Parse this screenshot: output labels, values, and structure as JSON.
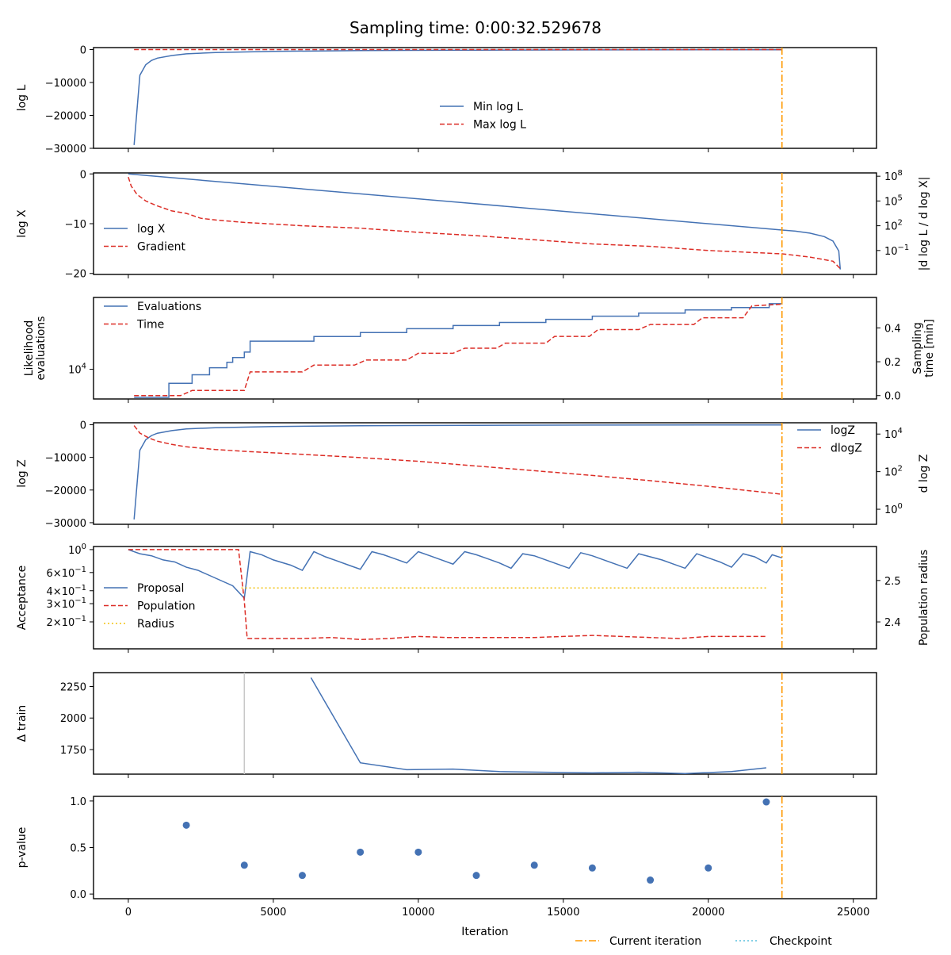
{
  "title": "Sampling time: 0:00:32.529678",
  "xlabel": "Iteration",
  "x_ticks": [
    0,
    5000,
    10000,
    15000,
    20000,
    25000
  ],
  "x_tick_labels": [
    "0",
    "5000",
    "10000",
    "15000",
    "20000",
    "25000"
  ],
  "xlim": [
    -1200,
    25800
  ],
  "current_iteration": 22540,
  "figure_legend": [
    {
      "label": "Current iteration",
      "style": "dashdot",
      "color": "#ff9900"
    },
    {
      "label": "Checkpoint",
      "style": "dotted",
      "color": "#5bc0de"
    }
  ],
  "colors": {
    "blue": "#4472b4",
    "red": "#dc2d26",
    "yellow": "#f2c20f",
    "orange": "#ff9900",
    "grey": "#c8c8c8",
    "cyan": "#5bc0de"
  },
  "chart_data": [
    {
      "id": "logL",
      "type": "line",
      "ylabel": "log L",
      "ylim": [
        -30000,
        600
      ],
      "yticks": [
        0,
        -10000,
        -20000,
        -30000
      ],
      "ytick_labels": [
        "0",
        "−10000",
        "−20000",
        "−30000"
      ],
      "legend": {
        "position": "lower center"
      },
      "series": [
        {
          "name": "Min log L",
          "style": "solid",
          "color": "#4472b4",
          "x": [
            200,
            400,
            600,
            800,
            1000,
            1500,
            2000,
            3000,
            5000,
            8000,
            12000,
            16000,
            20000,
            22540
          ],
          "y": [
            -29000,
            -7800,
            -4600,
            -3300,
            -2600,
            -1800,
            -1300,
            -900,
            -550,
            -300,
            -180,
            -110,
            -70,
            -50
          ]
        },
        {
          "name": "Max log L",
          "style": "dashed",
          "color": "#dc2d26",
          "x": [
            200,
            22540
          ],
          "y": [
            -10,
            -10
          ]
        }
      ]
    },
    {
      "id": "logX",
      "type": "line",
      "ylabel": "log X",
      "ylim": [
        -20.2,
        0.2
      ],
      "yticks": [
        0,
        -10,
        -20
      ],
      "ytick_labels": [
        "0",
        "−10",
        "−20"
      ],
      "y2label": "|d log L / d log X|",
      "y2log": true,
      "y2lim": [
        -3.9,
        8.4
      ],
      "y2ticks": [
        8,
        5,
        2,
        -1
      ],
      "y2tick_labels": [
        "10^8",
        "10^5",
        "10^2",
        "10^-1"
      ],
      "legend": {
        "position": "lower left"
      },
      "series": [
        {
          "name": "log X",
          "style": "solid",
          "color": "#4472b4",
          "axis": "left",
          "x": [
            0,
            22540,
            23000,
            23500,
            24000,
            24300,
            24500,
            24550
          ],
          "y": [
            0,
            -11.27,
            -11.5,
            -11.9,
            -12.6,
            -13.5,
            -15.5,
            -19.2
          ]
        },
        {
          "name": "Gradient",
          "style": "dashed",
          "color": "#dc2d26",
          "axis": "right",
          "x": [
            0,
            100,
            300,
            600,
            1000,
            1500,
            2000,
            2500,
            3000,
            4000,
            6000,
            8000,
            10000,
            12000,
            14000,
            16000,
            18000,
            20000,
            22540,
            23500,
            24300,
            24550
          ],
          "y": [
            7.9,
            6.8,
            5.8,
            5.0,
            4.4,
            3.8,
            3.5,
            2.9,
            2.7,
            2.4,
            2.0,
            1.7,
            1.2,
            0.8,
            0.3,
            -0.2,
            -0.5,
            -1.0,
            -1.4,
            -1.8,
            -2.3,
            -3.2
          ]
        }
      ]
    },
    {
      "id": "evals",
      "type": "line",
      "ylabel": "Likelihood evaluations",
      "ylog": true,
      "ylim": [
        3.62,
        4.92
      ],
      "yticks": [
        4
      ],
      "ytick_labels": [
        "10^4"
      ],
      "y2label": "Sampling time [min]",
      "y2lim": [
        -0.02,
        0.58
      ],
      "y2ticks": [
        0.0,
        0.2,
        0.4
      ],
      "y2tick_labels": [
        "0.0",
        "0.2",
        "0.4"
      ],
      "legend": {
        "position": "upper left"
      },
      "series": [
        {
          "name": "Evaluations",
          "style": "steps",
          "color": "#4472b4",
          "axis": "left",
          "x": [
            200,
            1200,
            1400,
            2000,
            2200,
            2600,
            2800,
            3200,
            3400,
            3600,
            4000,
            4200,
            6400,
            8000,
            9600,
            11200,
            12800,
            14400,
            16000,
            17600,
            19200,
            20800,
            22100,
            22540
          ],
          "y": [
            3.64,
            3.64,
            3.82,
            3.82,
            3.93,
            3.93,
            4.02,
            4.02,
            4.09,
            4.15,
            4.22,
            4.36,
            4.42,
            4.47,
            4.52,
            4.56,
            4.6,
            4.64,
            4.68,
            4.72,
            4.76,
            4.79,
            4.84,
            4.84
          ]
        },
        {
          "name": "Time",
          "style": "dashed",
          "color": "#dc2d26",
          "axis": "right",
          "x": [
            200,
            1800,
            2200,
            4000,
            4200,
            6000,
            6400,
            7800,
            8200,
            9600,
            10000,
            11200,
            11600,
            12700,
            13000,
            14400,
            14700,
            15900,
            16200,
            17600,
            18000,
            19500,
            19800,
            21200,
            21500,
            22540
          ],
          "y": [
            0.0,
            0.0,
            0.03,
            0.03,
            0.14,
            0.14,
            0.18,
            0.18,
            0.21,
            0.21,
            0.25,
            0.25,
            0.28,
            0.28,
            0.31,
            0.31,
            0.35,
            0.35,
            0.39,
            0.39,
            0.42,
            0.42,
            0.46,
            0.46,
            0.53,
            0.54
          ]
        }
      ]
    },
    {
      "id": "logZ",
      "type": "line",
      "ylabel": "log Z",
      "ylim": [
        -30500,
        600
      ],
      "yticks": [
        0,
        -10000,
        -20000,
        -30000
      ],
      "ytick_labels": [
        "0",
        "−10000",
        "−20000",
        "−30000"
      ],
      "y2label": "d log Z",
      "y2log": true,
      "y2lim": [
        -0.8,
        4.6
      ],
      "y2ticks": [
        4,
        2,
        0
      ],
      "y2tick_labels": [
        "10^4",
        "10^2",
        "10^0"
      ],
      "legend": {
        "position": "upper right"
      },
      "series": [
        {
          "name": "logZ",
          "style": "solid",
          "color": "#4472b4",
          "axis": "left",
          "x": [
            200,
            400,
            600,
            800,
            1000,
            1500,
            2000,
            3000,
            5000,
            8000,
            12000,
            16000,
            20000,
            22540
          ],
          "y": [
            -29000,
            -7800,
            -4600,
            -3300,
            -2600,
            -1800,
            -1300,
            -900,
            -550,
            -300,
            -180,
            -110,
            -70,
            -50
          ]
        },
        {
          "name": "dlogZ",
          "style": "dashed",
          "color": "#dc2d26",
          "axis": "right",
          "x": [
            200,
            400,
            700,
            1000,
            1500,
            2000,
            3000,
            4000,
            6000,
            8000,
            10000,
            12000,
            14000,
            16000,
            18000,
            20000,
            22540
          ],
          "y": [
            4.45,
            4.05,
            3.8,
            3.62,
            3.45,
            3.32,
            3.18,
            3.08,
            2.92,
            2.75,
            2.55,
            2.3,
            2.05,
            1.8,
            1.52,
            1.22,
            0.8
          ]
        }
      ]
    },
    {
      "id": "acceptance",
      "type": "line",
      "ylabel": "Acceptance",
      "ylog": true,
      "ylim": [
        -0.96,
        0.03
      ],
      "yticks": [
        0,
        -0.2218,
        -0.3979,
        -0.5229,
        -0.699
      ],
      "ytick_labels": [
        "10^0",
        "6×10^-1",
        "4×10^-1",
        "3×10^-1",
        "2×10^-1"
      ],
      "y2label": "Population radius",
      "y2lim": [
        2.335,
        2.582
      ],
      "y2ticks": [
        2.5,
        2.4
      ],
      "y2tick_labels": [
        "2.5",
        "2.4"
      ],
      "legend": {
        "position": "lower left"
      },
      "series": [
        {
          "name": "Proposal",
          "style": "solid",
          "color": "#4472b4",
          "axis": "left",
          "x": [
            0,
            400,
            800,
            1200,
            1600,
            2000,
            2400,
            2800,
            3200,
            3600,
            4000,
            4200,
            4600,
            5000,
            5600,
            6000,
            6400,
            6800,
            7200,
            7600,
            8000,
            8400,
            8800,
            9200,
            9600,
            10000,
            10400,
            10800,
            11200,
            11600,
            12000,
            12400,
            12800,
            13200,
            13600,
            14000,
            14400,
            14800,
            15200,
            15600,
            16000,
            16400,
            16800,
            17200,
            17600,
            18000,
            18400,
            18800,
            19200,
            19600,
            20000,
            20400,
            20800,
            21200,
            21600,
            22000,
            22200,
            22540
          ],
          "y": [
            0,
            -0.04,
            -0.06,
            -0.1,
            -0.12,
            -0.17,
            -0.2,
            -0.25,
            -0.3,
            -0.35,
            -0.47,
            -0.02,
            -0.05,
            -0.1,
            -0.15,
            -0.2,
            -0.02,
            -0.07,
            -0.11,
            -0.15,
            -0.19,
            -0.02,
            -0.05,
            -0.09,
            -0.13,
            -0.02,
            -0.06,
            -0.1,
            -0.14,
            -0.02,
            -0.05,
            -0.09,
            -0.13,
            -0.18,
            -0.04,
            -0.06,
            -0.1,
            -0.14,
            -0.18,
            -0.03,
            -0.06,
            -0.1,
            -0.14,
            -0.18,
            -0.04,
            -0.07,
            -0.1,
            -0.14,
            -0.18,
            -0.04,
            -0.08,
            -0.12,
            -0.17,
            -0.04,
            -0.07,
            -0.13,
            -0.05,
            -0.08
          ]
        },
        {
          "name": "Population",
          "style": "dashed",
          "color": "#dc2d26",
          "axis": "left",
          "x": [
            0,
            3800,
            4000,
            4100,
            5000,
            6000,
            7000,
            8000,
            9000,
            10000,
            11000,
            12000,
            13000,
            14000,
            15000,
            16000,
            17000,
            18000,
            19000,
            20000,
            21000,
            22000
          ],
          "y": [
            0,
            0,
            -0.5,
            -0.86,
            -0.86,
            -0.86,
            -0.85,
            -0.87,
            -0.86,
            -0.84,
            -0.85,
            -0.85,
            -0.85,
            -0.85,
            -0.84,
            -0.83,
            -0.84,
            -0.85,
            -0.86,
            -0.84,
            -0.84,
            -0.84
          ]
        },
        {
          "name": "Radius",
          "style": "dotted",
          "color": "#f2c20f",
          "axis": "right",
          "x": [
            3900,
            22000
          ],
          "y": [
            2.482,
            2.482
          ]
        }
      ]
    },
    {
      "id": "train",
      "type": "line",
      "ylabel": "Δ train",
      "ylim": [
        1555,
        2360
      ],
      "yticks": [
        2250,
        2000,
        1750
      ],
      "ytick_labels": [
        "2250",
        "2000",
        "1750"
      ],
      "series": [
        {
          "style": "solid",
          "color": "#4472b4",
          "x": [
            6300,
            8000,
            9600,
            11200,
            12800,
            14400,
            16000,
            17600,
            19200,
            20800,
            22000
          ],
          "y": [
            2320,
            1645,
            1590,
            1595,
            1575,
            1570,
            1565,
            1570,
            1560,
            1575,
            1605
          ]
        }
      ],
      "vlines": [
        {
          "x": 4000,
          "color": "#c8c8c8"
        }
      ]
    },
    {
      "id": "pvalue",
      "type": "scatter",
      "ylabel": "p-value",
      "ylim": [
        -0.05,
        1.05
      ],
      "yticks": [
        1.0,
        0.5,
        0.0
      ],
      "ytick_labels": [
        "1.0",
        "0.5",
        "0.0"
      ],
      "series": [
        {
          "style": "markers",
          "color": "#4472b4",
          "x": [
            2000,
            4000,
            6000,
            8000,
            10000,
            12000,
            14000,
            16000,
            18000,
            20000,
            22000
          ],
          "y": [
            0.74,
            0.31,
            0.2,
            0.45,
            0.45,
            0.2,
            0.31,
            0.28,
            0.15,
            0.28,
            0.99
          ]
        }
      ]
    }
  ]
}
